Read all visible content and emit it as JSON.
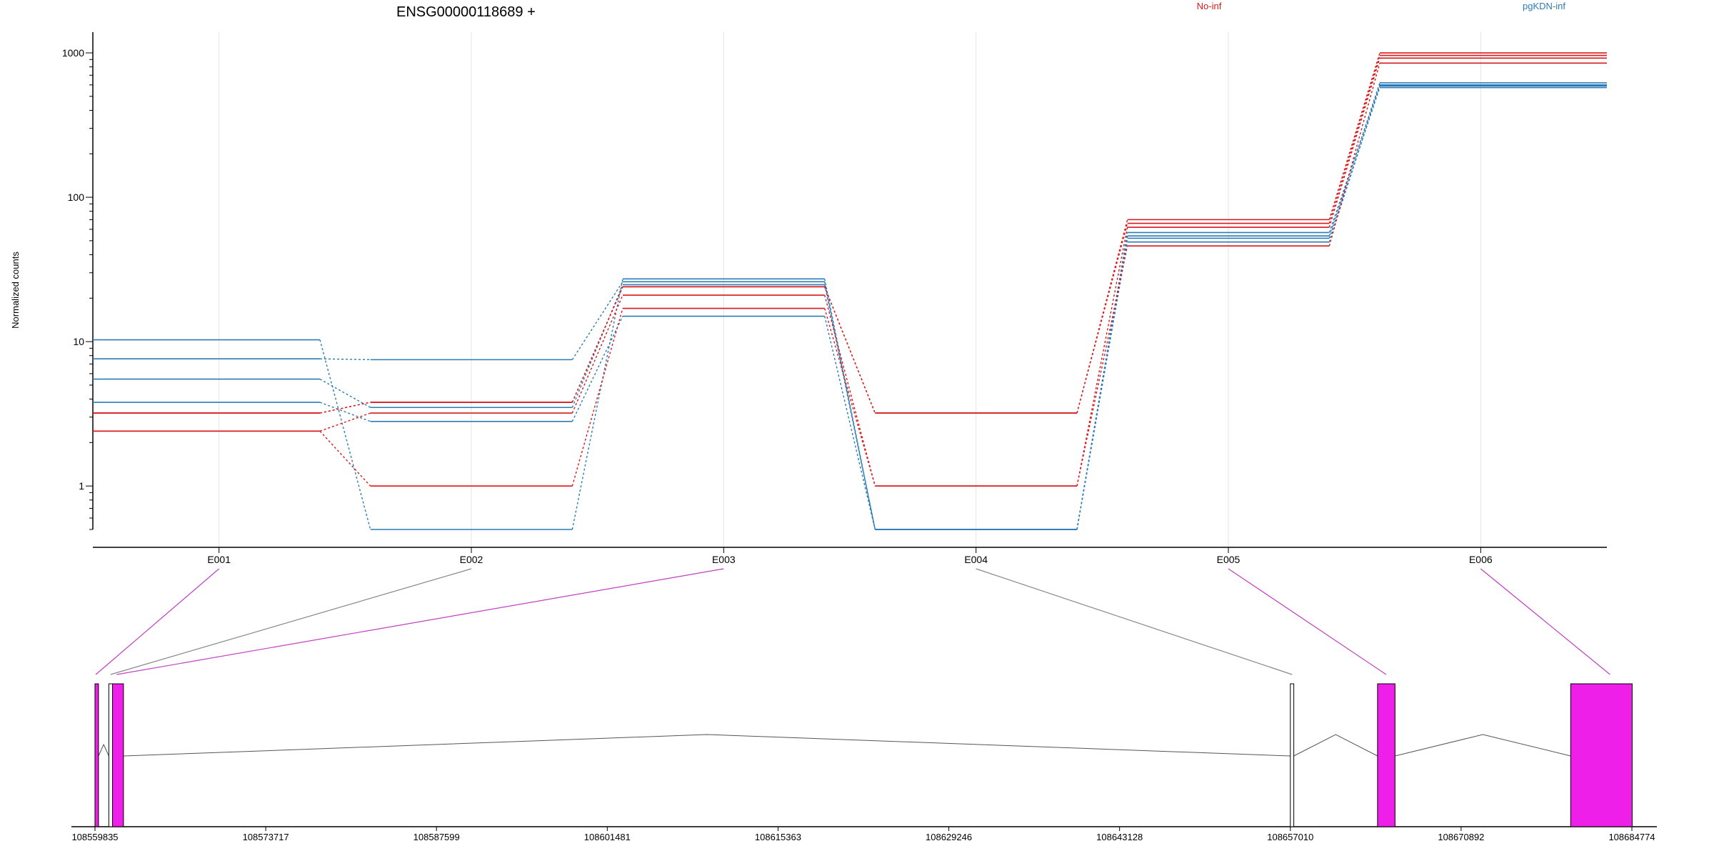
{
  "chart_data": {
    "type": "line",
    "title": "ENSG00000118689 +",
    "ylabel": "Normalized counts",
    "xlabel": "",
    "yscale": "log",
    "ylim": [
      0.5,
      1300
    ],
    "yticks": [
      "1",
      "10",
      "100",
      "1000"
    ],
    "grid": "vertical",
    "legend_position": "top",
    "categories": [
      "E001",
      "E002",
      "E003",
      "E004",
      "E005",
      "E006"
    ],
    "groups": [
      {
        "name": "No-inf",
        "color": "#d7191c"
      },
      {
        "name": "pgKDN-inf",
        "color": "#2c7bb6"
      }
    ],
    "series": [
      {
        "group": "pgKDN-inf",
        "values": [
          10.3,
          0.5,
          27.2,
          0.5,
          52.0,
          575.0
        ]
      },
      {
        "group": "pgKDN-inf",
        "values": [
          7.6,
          7.5,
          26.0,
          0.5,
          57.0,
          600.0
        ]
      },
      {
        "group": "pgKDN-inf",
        "values": [
          5.5,
          3.5,
          24.8,
          0.5,
          49.0,
          590.0
        ]
      },
      {
        "group": "pgKDN-inf",
        "values": [
          3.8,
          2.8,
          15.0,
          0.5,
          54.0,
          620.0
        ]
      },
      {
        "group": "No-inf",
        "values": [
          3.2,
          3.8,
          24.0,
          3.2,
          70.0,
          1000.0
        ]
      },
      {
        "group": "No-inf",
        "values": [
          2.4,
          3.2,
          21.0,
          1.0,
          62.0,
          920.0
        ]
      },
      {
        "group": "No-inf",
        "values": [
          2.4,
          1.0,
          17.0,
          1.0,
          46.0,
          850.0
        ]
      },
      {
        "group": "No-inf",
        "values": [
          3.2,
          3.8,
          24.0,
          3.2,
          66.0,
          960.0
        ]
      }
    ],
    "gene_model": {
      "genomic_ticks": [
        "108559835",
        "108573717",
        "108587599",
        "108601481",
        "108615363",
        "108629246",
        "108643128",
        "108657010",
        "108670892",
        "108684774"
      ],
      "exon_highlight_color": "#ee1fe9",
      "exons": [
        {
          "start": 108559835,
          "end": 108560120,
          "highlight": true
        },
        {
          "start": 108560960,
          "end": 108561260,
          "highlight": false
        },
        {
          "start": 108561260,
          "end": 108562150,
          "highlight": true
        },
        {
          "start": 108657010,
          "end": 108657290,
          "highlight": false
        },
        {
          "start": 108664100,
          "end": 108665520,
          "highlight": true
        },
        {
          "start": 108679800,
          "end": 108684800,
          "highlight": true
        }
      ],
      "connectors": [
        {
          "label": "E001",
          "genomic": 108559900,
          "highlight": true
        },
        {
          "label": "E002",
          "genomic": 108561100,
          "highlight": false
        },
        {
          "label": "E003",
          "genomic": 108561600,
          "highlight": true
        },
        {
          "label": "E004",
          "genomic": 108657150,
          "highlight": false
        },
        {
          "label": "E005",
          "genomic": 108664800,
          "highlight": true
        },
        {
          "label": "E006",
          "genomic": 108683000,
          "highlight": true
        }
      ]
    }
  }
}
